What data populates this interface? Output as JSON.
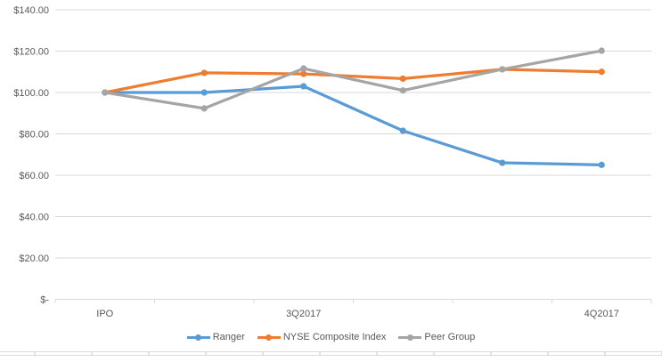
{
  "chart_data": {
    "type": "line",
    "title": "",
    "categories": [
      "IPO",
      "",
      "3Q2017",
      "",
      "",
      "4Q2017"
    ],
    "series": [
      {
        "name": "Ranger",
        "color": "#5B9BD5",
        "values": [
          100,
          100,
          103,
          81.5,
          66,
          65
        ]
      },
      {
        "name": "NYSE Composite Index",
        "color": "#ED7D31",
        "values": [
          100,
          109.5,
          109,
          106.7,
          111.2,
          110
        ]
      },
      {
        "name": "Peer Group",
        "color": "#A5A5A5",
        "values": [
          100,
          92.3,
          111.6,
          101,
          111.2,
          120.2
        ]
      }
    ],
    "y_axis": {
      "min": 0,
      "max": 140,
      "step": 20,
      "tick_labels": [
        "$-",
        "$20.00",
        "$40.00",
        "$60.00",
        "$80.00",
        "$100.00",
        "$120.00",
        "$140.00"
      ]
    },
    "x_axis": {
      "visible_labels": [
        "IPO",
        "3Q2017",
        "4Q2017"
      ]
    },
    "legend_position": "bottom",
    "grid": true
  },
  "styles": {
    "background": "#FFFFFF",
    "text_color": "#595959",
    "gridline_color": "#D9D9D9",
    "axis_color": "#D9D9D9",
    "sheet_line_color": "#DBDBDB",
    "sheet_tick_color": "#C6C6C6"
  }
}
